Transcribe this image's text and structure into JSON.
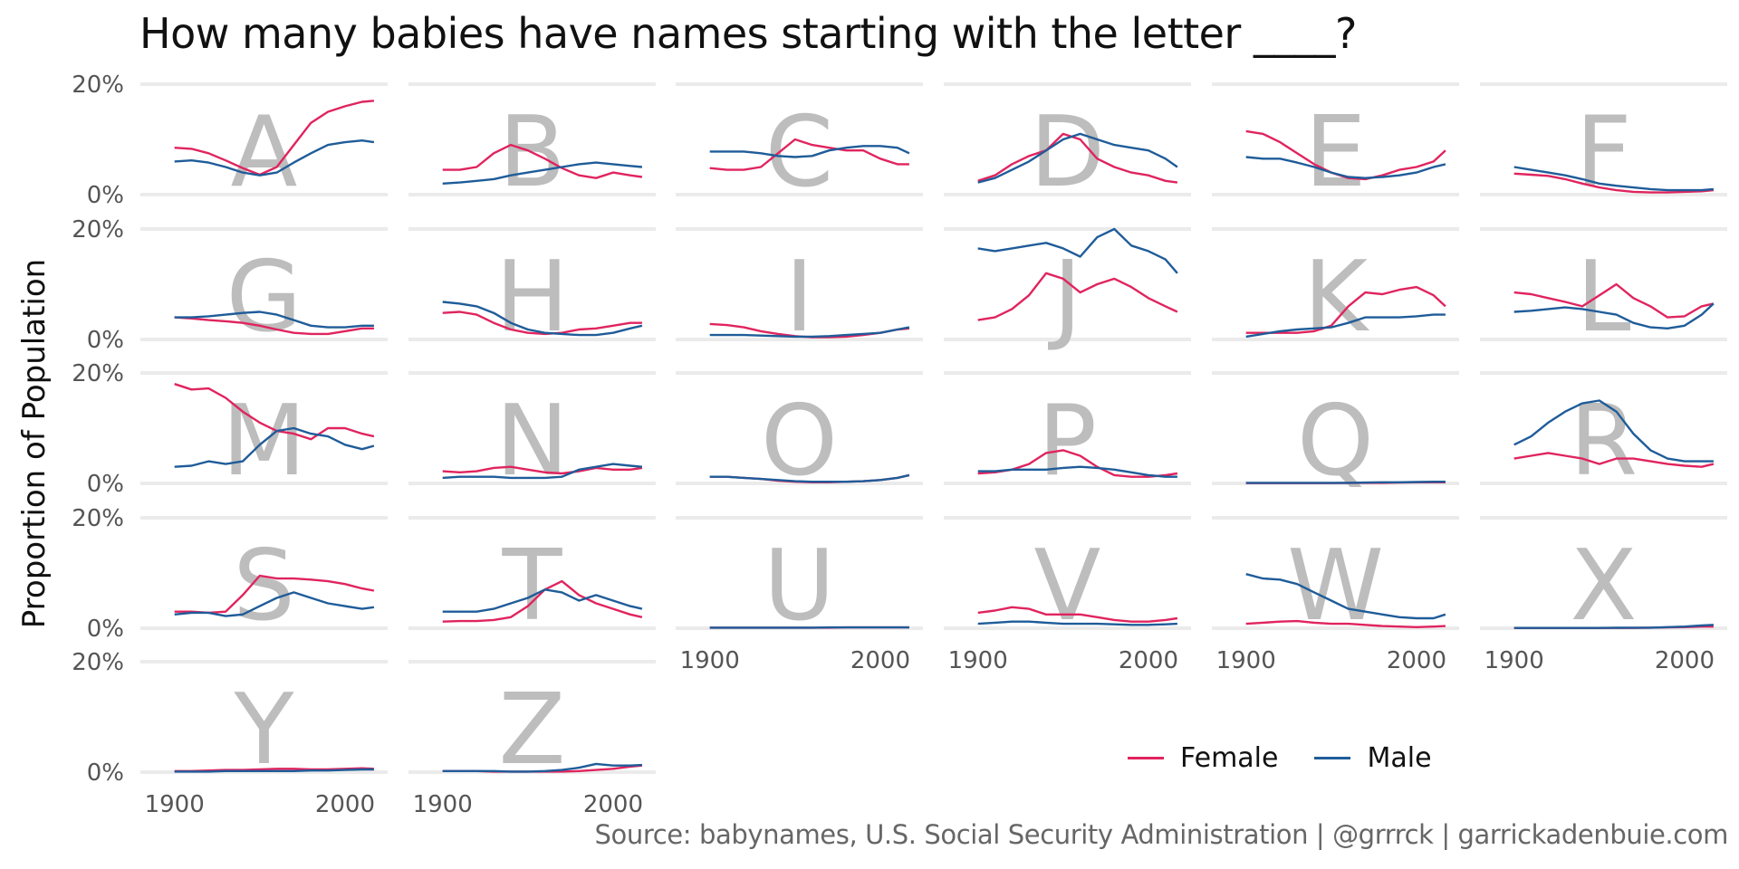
{
  "title": "How many babies have names starting with the letter ____?",
  "caption": "Source: babynames, U.S. Social Security Administration | @grrrck | garrickadenbuie.com",
  "colors": {
    "Female": "#e0245e",
    "Male": "#1f5c99",
    "letter": "#bdbdbd",
    "grid": "#ebebeb"
  },
  "chart_data": {
    "type": "line",
    "title": "How many babies have names starting with the letter ____?",
    "xlabel": "",
    "ylabel": "Proportion of Population",
    "x_years": [
      1900,
      1910,
      1920,
      1930,
      1940,
      1950,
      1960,
      1970,
      1980,
      1990,
      2000,
      2010,
      2017
    ],
    "x_ticks": [
      "1900",
      "2000"
    ],
    "y_ticks": [
      "0%",
      "20%"
    ],
    "ylim": [
      0,
      0.2
    ],
    "legend": {
      "position": "bottom-right",
      "entries": [
        "Female",
        "Male"
      ]
    },
    "panels": [
      {
        "letter": "A",
        "Female": [
          0.085,
          0.083,
          0.075,
          0.062,
          0.048,
          0.036,
          0.05,
          0.09,
          0.13,
          0.15,
          0.16,
          0.168,
          0.17
        ],
        "Male": [
          0.06,
          0.062,
          0.058,
          0.05,
          0.04,
          0.035,
          0.04,
          0.058,
          0.075,
          0.09,
          0.095,
          0.098,
          0.095
        ]
      },
      {
        "letter": "B",
        "Female": [
          0.045,
          0.045,
          0.05,
          0.075,
          0.09,
          0.08,
          0.065,
          0.048,
          0.035,
          0.03,
          0.04,
          0.035,
          0.032
        ],
        "Male": [
          0.02,
          0.022,
          0.025,
          0.028,
          0.035,
          0.04,
          0.045,
          0.05,
          0.055,
          0.058,
          0.055,
          0.052,
          0.05
        ]
      },
      {
        "letter": "C",
        "Female": [
          0.048,
          0.045,
          0.045,
          0.05,
          0.075,
          0.1,
          0.09,
          0.085,
          0.08,
          0.08,
          0.065,
          0.055,
          0.055
        ],
        "Male": [
          0.078,
          0.078,
          0.078,
          0.075,
          0.07,
          0.068,
          0.07,
          0.08,
          0.085,
          0.088,
          0.088,
          0.085,
          0.075
        ]
      },
      {
        "letter": "D",
        "Female": [
          0.025,
          0.035,
          0.055,
          0.07,
          0.08,
          0.11,
          0.1,
          0.065,
          0.05,
          0.04,
          0.035,
          0.025,
          0.022
        ],
        "Male": [
          0.022,
          0.03,
          0.045,
          0.06,
          0.08,
          0.1,
          0.11,
          0.1,
          0.09,
          0.085,
          0.08,
          0.065,
          0.05
        ]
      },
      {
        "letter": "E",
        "Female": [
          0.115,
          0.11,
          0.095,
          0.075,
          0.055,
          0.04,
          0.03,
          0.028,
          0.035,
          0.045,
          0.05,
          0.06,
          0.08
        ],
        "Male": [
          0.068,
          0.065,
          0.065,
          0.058,
          0.05,
          0.04,
          0.032,
          0.03,
          0.032,
          0.035,
          0.04,
          0.05,
          0.055
        ]
      },
      {
        "letter": "F",
        "Female": [
          0.038,
          0.036,
          0.034,
          0.028,
          0.02,
          0.013,
          0.008,
          0.005,
          0.004,
          0.004,
          0.005,
          0.006,
          0.008
        ],
        "Male": [
          0.05,
          0.045,
          0.04,
          0.035,
          0.028,
          0.02,
          0.016,
          0.013,
          0.01,
          0.008,
          0.008,
          0.008,
          0.01
        ]
      },
      {
        "letter": "G",
        "Female": [
          0.04,
          0.038,
          0.035,
          0.033,
          0.03,
          0.025,
          0.018,
          0.012,
          0.01,
          0.01,
          0.015,
          0.02,
          0.02
        ],
        "Male": [
          0.04,
          0.04,
          0.042,
          0.045,
          0.048,
          0.05,
          0.045,
          0.035,
          0.025,
          0.022,
          0.022,
          0.025,
          0.025
        ]
      },
      {
        "letter": "H",
        "Female": [
          0.048,
          0.05,
          0.045,
          0.03,
          0.018,
          0.012,
          0.01,
          0.012,
          0.018,
          0.02,
          0.025,
          0.03,
          0.03
        ],
        "Male": [
          0.068,
          0.065,
          0.06,
          0.048,
          0.03,
          0.018,
          0.012,
          0.01,
          0.008,
          0.008,
          0.012,
          0.02,
          0.025
        ]
      },
      {
        "letter": "I",
        "Female": [
          0.028,
          0.026,
          0.022,
          0.015,
          0.01,
          0.006,
          0.004,
          0.004,
          0.005,
          0.008,
          0.012,
          0.018,
          0.02
        ],
        "Male": [
          0.008,
          0.008,
          0.008,
          0.007,
          0.006,
          0.005,
          0.005,
          0.006,
          0.008,
          0.01,
          0.012,
          0.018,
          0.022
        ]
      },
      {
        "letter": "J",
        "Female": [
          0.035,
          0.04,
          0.055,
          0.08,
          0.12,
          0.11,
          0.085,
          0.1,
          0.11,
          0.095,
          0.075,
          0.06,
          0.05
        ],
        "Male": [
          0.165,
          0.16,
          0.165,
          0.17,
          0.175,
          0.165,
          0.15,
          0.185,
          0.2,
          0.17,
          0.16,
          0.145,
          0.12
        ]
      },
      {
        "letter": "K",
        "Female": [
          0.012,
          0.012,
          0.012,
          0.012,
          0.015,
          0.025,
          0.06,
          0.085,
          0.082,
          0.09,
          0.095,
          0.08,
          0.06
        ],
        "Male": [
          0.005,
          0.01,
          0.015,
          0.018,
          0.02,
          0.022,
          0.03,
          0.04,
          0.04,
          0.04,
          0.042,
          0.045,
          0.045
        ]
      },
      {
        "letter": "L",
        "Female": [
          0.085,
          0.082,
          0.075,
          0.068,
          0.06,
          0.08,
          0.1,
          0.075,
          0.06,
          0.04,
          0.042,
          0.06,
          0.065
        ],
        "Male": [
          0.05,
          0.052,
          0.055,
          0.058,
          0.055,
          0.05,
          0.045,
          0.03,
          0.022,
          0.02,
          0.025,
          0.045,
          0.065
        ]
      },
      {
        "letter": "M",
        "Female": [
          0.18,
          0.17,
          0.172,
          0.155,
          0.13,
          0.11,
          0.095,
          0.09,
          0.08,
          0.1,
          0.1,
          0.09,
          0.085
        ],
        "Male": [
          0.03,
          0.032,
          0.04,
          0.035,
          0.04,
          0.07,
          0.095,
          0.1,
          0.09,
          0.085,
          0.07,
          0.062,
          0.068
        ]
      },
      {
        "letter": "N",
        "Female": [
          0.022,
          0.02,
          0.022,
          0.028,
          0.03,
          0.025,
          0.02,
          0.018,
          0.022,
          0.028,
          0.025,
          0.025,
          0.028
        ],
        "Male": [
          0.01,
          0.012,
          0.012,
          0.012,
          0.01,
          0.01,
          0.01,
          0.012,
          0.025,
          0.03,
          0.035,
          0.032,
          0.03
        ]
      },
      {
        "letter": "O",
        "Female": [
          0.012,
          0.012,
          0.01,
          0.008,
          0.005,
          0.003,
          0.002,
          0.002,
          0.003,
          0.004,
          0.006,
          0.01,
          0.015
        ],
        "Male": [
          0.012,
          0.012,
          0.01,
          0.008,
          0.006,
          0.004,
          0.003,
          0.003,
          0.003,
          0.004,
          0.006,
          0.01,
          0.015
        ]
      },
      {
        "letter": "P",
        "Female": [
          0.018,
          0.02,
          0.025,
          0.035,
          0.055,
          0.06,
          0.05,
          0.03,
          0.015,
          0.012,
          0.012,
          0.015,
          0.018
        ],
        "Male": [
          0.022,
          0.022,
          0.025,
          0.025,
          0.025,
          0.028,
          0.03,
          0.028,
          0.025,
          0.02,
          0.015,
          0.012,
          0.012
        ]
      },
      {
        "letter": "Q",
        "Female": [
          0.0005,
          0.0005,
          0.0005,
          0.0005,
          0.0005,
          0.0005,
          0.0008,
          0.001,
          0.001,
          0.0015,
          0.002,
          0.002,
          0.002
        ],
        "Male": [
          0.001,
          0.001,
          0.001,
          0.001,
          0.001,
          0.001,
          0.001,
          0.0015,
          0.002,
          0.002,
          0.0025,
          0.003,
          0.003
        ]
      },
      {
        "letter": "R",
        "Female": [
          0.045,
          0.05,
          0.055,
          0.05,
          0.045,
          0.035,
          0.045,
          0.045,
          0.04,
          0.035,
          0.032,
          0.03,
          0.035
        ],
        "Male": [
          0.07,
          0.085,
          0.11,
          0.13,
          0.145,
          0.15,
          0.13,
          0.09,
          0.06,
          0.045,
          0.04,
          0.04,
          0.04
        ]
      },
      {
        "letter": "S",
        "Female": [
          0.03,
          0.03,
          0.028,
          0.03,
          0.06,
          0.095,
          0.09,
          0.09,
          0.088,
          0.085,
          0.08,
          0.072,
          0.068
        ],
        "Male": [
          0.025,
          0.028,
          0.028,
          0.022,
          0.025,
          0.04,
          0.055,
          0.065,
          0.055,
          0.045,
          0.04,
          0.035,
          0.038
        ]
      },
      {
        "letter": "T",
        "Female": [
          0.012,
          0.013,
          0.013,
          0.015,
          0.02,
          0.04,
          0.07,
          0.085,
          0.06,
          0.045,
          0.035,
          0.025,
          0.02
        ],
        "Male": [
          0.03,
          0.03,
          0.03,
          0.035,
          0.045,
          0.055,
          0.07,
          0.065,
          0.05,
          0.06,
          0.05,
          0.04,
          0.035
        ]
      },
      {
        "letter": "U",
        "Female": [
          0.001,
          0.001,
          0.001,
          0.001,
          0.001,
          0.001,
          0.001,
          0.001,
          0.0015,
          0.0015,
          0.0015,
          0.0015,
          0.0015
        ],
        "Male": [
          0.001,
          0.001,
          0.001,
          0.001,
          0.001,
          0.001,
          0.001,
          0.0015,
          0.0015,
          0.0015,
          0.0015,
          0.0015,
          0.0015
        ]
      },
      {
        "letter": "V",
        "Female": [
          0.028,
          0.032,
          0.038,
          0.035,
          0.025,
          0.025,
          0.025,
          0.02,
          0.015,
          0.012,
          0.012,
          0.015,
          0.018
        ],
        "Male": [
          0.008,
          0.01,
          0.012,
          0.012,
          0.01,
          0.008,
          0.008,
          0.008,
          0.007,
          0.006,
          0.006,
          0.007,
          0.008
        ]
      },
      {
        "letter": "W",
        "Female": [
          0.008,
          0.01,
          0.012,
          0.013,
          0.01,
          0.008,
          0.008,
          0.006,
          0.004,
          0.003,
          0.002,
          0.003,
          0.004
        ],
        "Male": [
          0.098,
          0.09,
          0.088,
          0.08,
          0.065,
          0.05,
          0.035,
          0.03,
          0.025,
          0.02,
          0.018,
          0.018,
          0.025
        ]
      },
      {
        "letter": "X",
        "Female": [
          0.0003,
          0.0003,
          0.0003,
          0.0003,
          0.0003,
          0.0003,
          0.0005,
          0.0005,
          0.001,
          0.0015,
          0.002,
          0.003,
          0.003
        ],
        "Male": [
          0.0005,
          0.0005,
          0.0005,
          0.0005,
          0.0005,
          0.0005,
          0.0008,
          0.001,
          0.001,
          0.002,
          0.003,
          0.005,
          0.006
        ]
      },
      {
        "letter": "Y",
        "Female": [
          0.002,
          0.002,
          0.003,
          0.004,
          0.004,
          0.005,
          0.006,
          0.006,
          0.005,
          0.005,
          0.006,
          0.007,
          0.006
        ],
        "Male": [
          0.001,
          0.001,
          0.001,
          0.002,
          0.002,
          0.002,
          0.002,
          0.002,
          0.003,
          0.003,
          0.004,
          0.005,
          0.005
        ]
      },
      {
        "letter": "Z",
        "Female": [
          0.002,
          0.002,
          0.002,
          0.001,
          0.001,
          0.001,
          0.001,
          0.001,
          0.002,
          0.004,
          0.006,
          0.01,
          0.012
        ],
        "Male": [
          0.002,
          0.002,
          0.002,
          0.002,
          0.001,
          0.001,
          0.002,
          0.004,
          0.008,
          0.015,
          0.012,
          0.012,
          0.013
        ]
      }
    ]
  }
}
